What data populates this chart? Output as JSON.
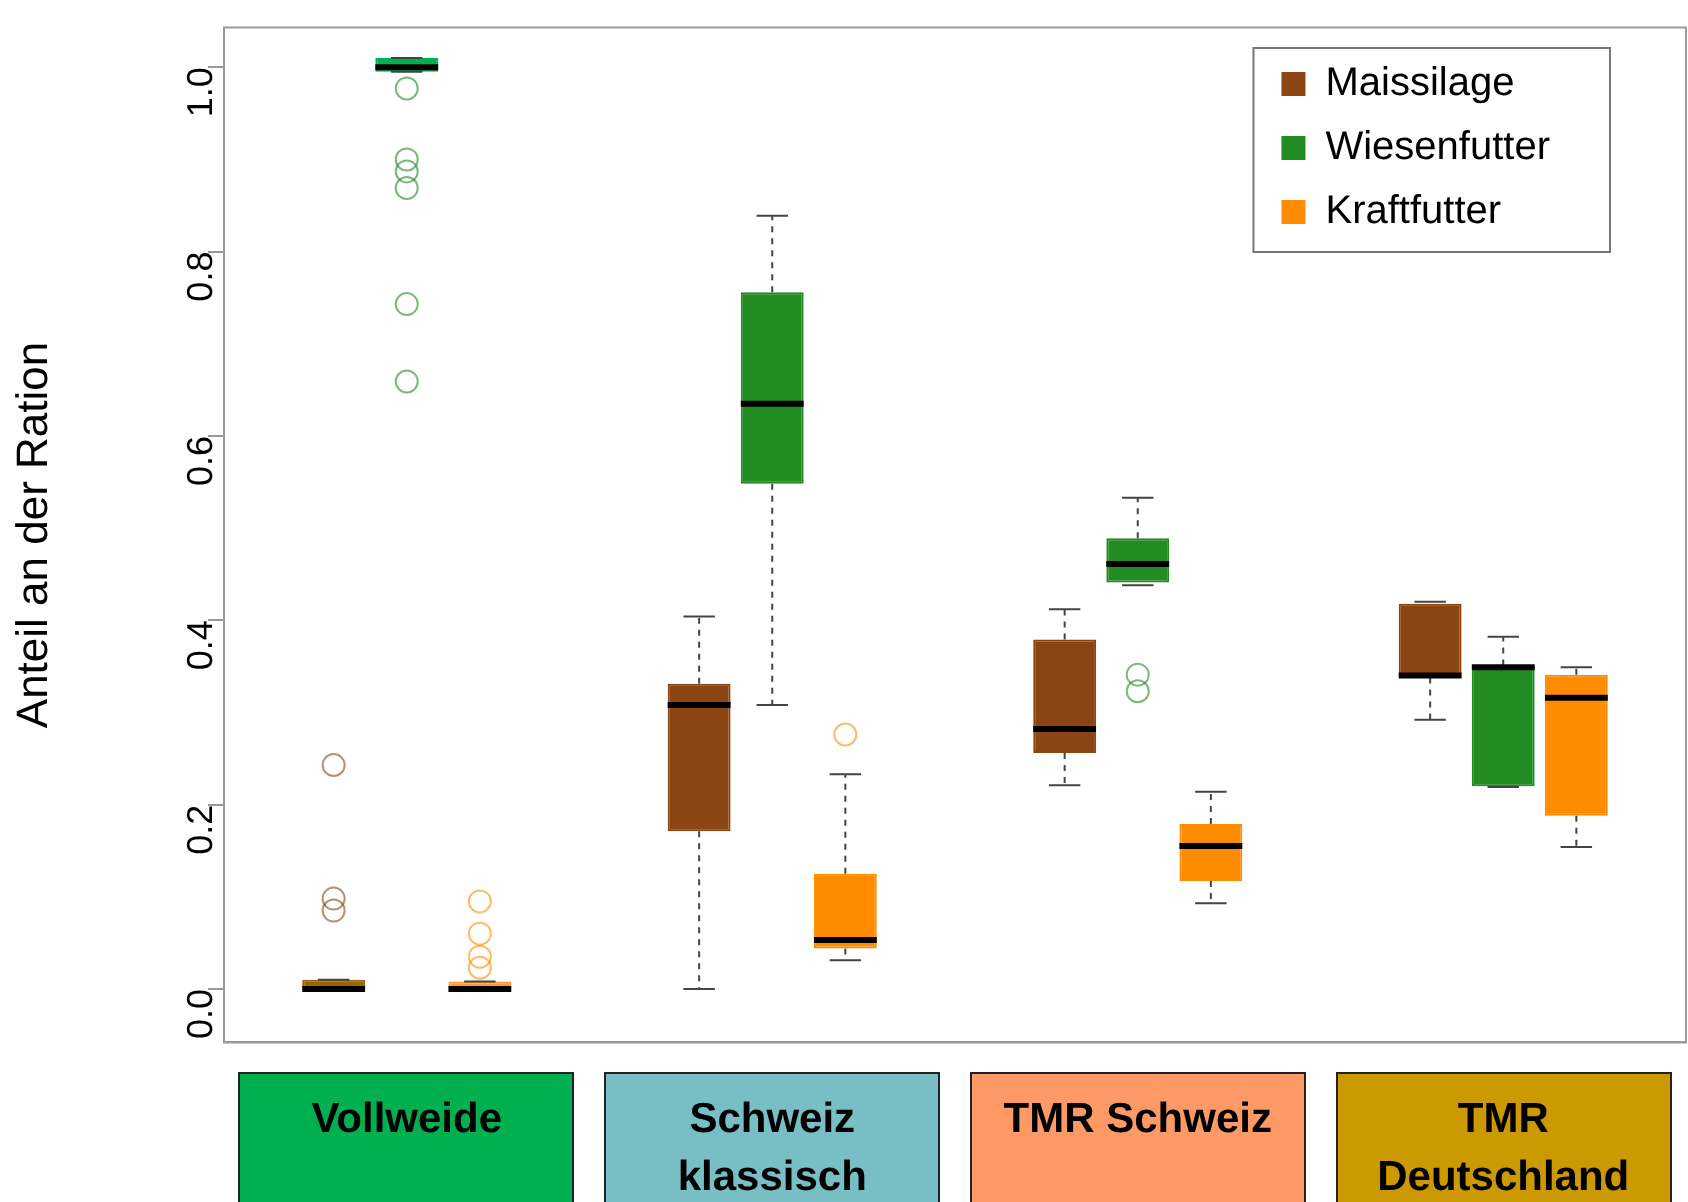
{
  "chart_data": {
    "type": "box",
    "ylabel": "Anteil an der Ration",
    "categories": [
      "Vollweide",
      "Schweiz klassisch",
      "TMR Schweiz",
      "TMR Deutschland"
    ],
    "ylim": [
      -0.058,
      1.043
    ],
    "yticks": [
      {
        "value": 0,
        "label": "0.0"
      },
      {
        "value": 0.2,
        "label": "0.2"
      },
      {
        "value": 0.4,
        "label": "0.4"
      },
      {
        "value": 0.6,
        "label": "0.6"
      },
      {
        "value": 0.8,
        "label": "0.8"
      },
      {
        "value": 1,
        "label": "1.0"
      }
    ],
    "grid": false,
    "legend": "top right",
    "series": [
      {
        "name": "Maissilage",
        "color": "#8b4513",
        "colors": [
          "#9c6500",
          "#8b4513",
          "#8b4513",
          "#8b4513"
        ],
        "boxes": [
          {
            "low": 0,
            "q1": 0,
            "median": 0,
            "q3": 0.01,
            "high": 0.01,
            "outliers": [
              0.243,
              0.098,
              0.085
            ]
          },
          {
            "low": 0,
            "q1": 0.171,
            "median": 0.308,
            "q3": 0.331,
            "high": 0.404
          },
          {
            "low": 0.221,
            "q1": 0.256,
            "median": 0.282,
            "q3": 0.379,
            "high": 0.412
          },
          {
            "low": 0.292,
            "q1": 0.338,
            "median": 0.34,
            "q3": 0.418,
            "high": 0.42
          }
        ]
      },
      {
        "name": "Wiesenfutter",
        "color": "#228b22",
        "colors": [
          "#00b050",
          "#228b22",
          "#228b22",
          "#228b22"
        ],
        "boxes": [
          {
            "low": 0.995,
            "q1": 0.995,
            "median": 1,
            "q3": 1.01,
            "high": 1.01,
            "outliers": [
              0.977,
              0.9,
              0.887,
              0.869,
              0.743,
              0.659
            ]
          },
          {
            "low": 0.308,
            "q1": 0.548,
            "median": 0.635,
            "q3": 0.756,
            "high": 0.839
          },
          {
            "low": 0.438,
            "q1": 0.441,
            "median": 0.461,
            "q3": 0.489,
            "high": 0.533,
            "outliers": [
              0.341,
              0.323
            ]
          },
          {
            "low": 0.219,
            "q1": 0.22,
            "median": 0.349,
            "q3": 0.351,
            "high": 0.382
          }
        ]
      },
      {
        "name": "Kraftfutter",
        "color": "#ff8c00",
        "colors": [
          "#ff9933",
          "#ff8c00",
          "#ff8c00",
          "#ff8c00"
        ],
        "boxes": [
          {
            "low": 0,
            "q1": 0,
            "median": 0,
            "q3": 0.008,
            "high": 0.008,
            "outliers": [
              0.095,
              0.06,
              0.035,
              0.023
            ]
          },
          {
            "low": 0.031,
            "q1": 0.044,
            "median": 0.053,
            "q3": 0.125,
            "high": 0.233,
            "outliers": [
              0.276
            ]
          },
          {
            "low": 0.093,
            "q1": 0.117,
            "median": 0.155,
            "q3": 0.179,
            "high": 0.214
          },
          {
            "low": 0.154,
            "q1": 0.188,
            "median": 0.316,
            "q3": 0.341,
            "high": 0.349
          }
        ]
      }
    ]
  }
}
